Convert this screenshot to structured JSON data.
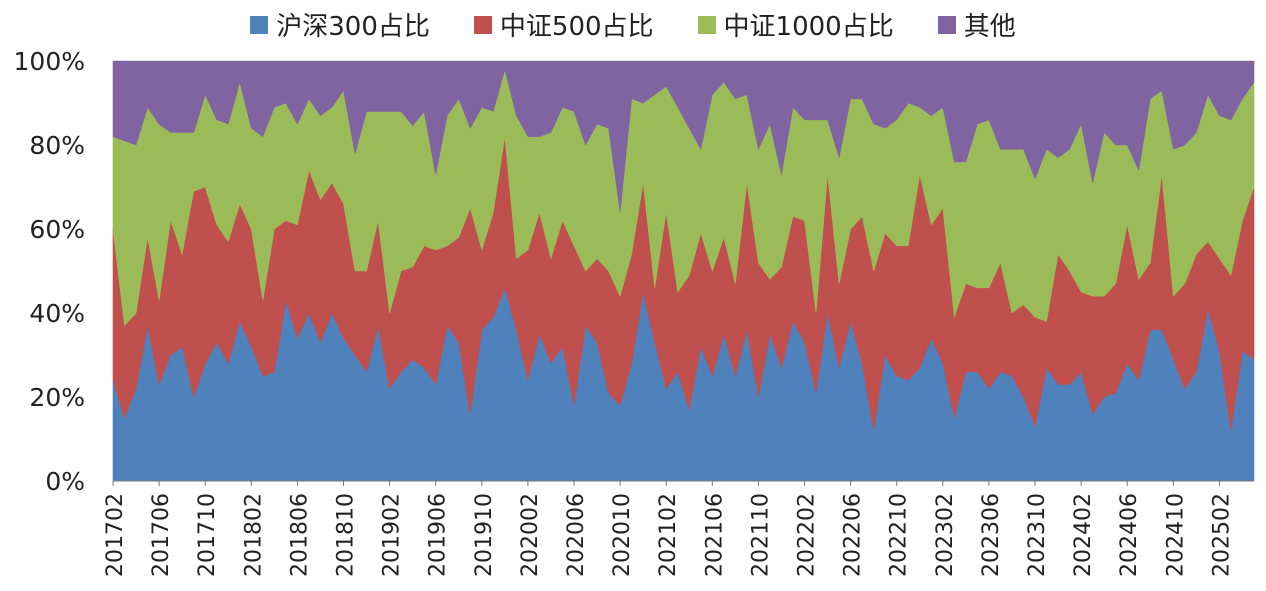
{
  "chart_data": {
    "type": "area",
    "stacked": true,
    "title": "",
    "xlabel": "",
    "ylabel": "",
    "ylim": [
      0,
      100
    ],
    "y_ticks": [
      "0%",
      "20%",
      "40%",
      "60%",
      "80%",
      "100%"
    ],
    "x_tick_labels": [
      "201702",
      "201706",
      "201710",
      "201802",
      "201806",
      "201810",
      "201902",
      "201906",
      "201910",
      "202002",
      "202006",
      "202010",
      "202102",
      "202106",
      "202110",
      "202202",
      "202206",
      "202210",
      "202302",
      "202306",
      "202310",
      "202402",
      "202406",
      "202410",
      "202502"
    ],
    "x_start": "201702",
    "x_end": "202505",
    "series": [
      {
        "name": "沪深300占比",
        "color": "#4F81BD",
        "values": [
          24,
          15,
          22,
          37,
          23,
          30,
          32,
          20,
          28,
          33,
          28,
          38,
          32,
          25,
          26,
          43,
          34,
          40,
          33,
          40,
          34,
          30,
          26,
          37,
          22,
          26,
          30,
          27,
          23,
          37,
          33,
          16,
          36,
          39,
          46,
          36,
          24,
          35,
          28,
          32,
          18,
          37,
          33,
          21,
          18,
          28,
          45,
          33,
          22,
          26,
          17,
          32,
          25,
          35,
          25,
          36,
          20,
          35,
          27,
          38,
          33,
          21,
          40,
          27,
          38,
          28,
          12,
          30,
          25,
          24,
          27,
          34,
          28,
          15,
          26,
          26,
          22,
          26,
          25,
          20,
          13,
          27,
          23,
          23,
          26,
          16,
          20,
          21,
          28,
          24,
          36,
          36,
          29,
          22,
          26,
          41,
          31,
          12,
          31,
          29
        ]
      },
      {
        "name": "中证500占比",
        "color": "#C0504D",
        "values": [
          36,
          22,
          18,
          21,
          20,
          32,
          22,
          49,
          42,
          28,
          29,
          28,
          28,
          18,
          34,
          19,
          27,
          34,
          34,
          31,
          32,
          20,
          24,
          25,
          18,
          24,
          23,
          29,
          32,
          19,
          25,
          49,
          19,
          25,
          36,
          17,
          31,
          29,
          25,
          30,
          38,
          13,
          20,
          29,
          26,
          26,
          26,
          13,
          42,
          19,
          32,
          27,
          25,
          23,
          22,
          35,
          32,
          13,
          24,
          25,
          29,
          19,
          33,
          20,
          22,
          35,
          38,
          29,
          31,
          32,
          46,
          27,
          37,
          24,
          21,
          20,
          24,
          26,
          15,
          22,
          26,
          11,
          31,
          27,
          19,
          28,
          24,
          26,
          33,
          24,
          16,
          37,
          15,
          25,
          28,
          16,
          22,
          37,
          31,
          41
        ]
      },
      {
        "name": "中证1000占比",
        "color": "#9BBB59",
        "values": [
          22,
          44,
          40,
          31,
          42,
          21,
          29,
          14,
          22,
          25,
          28,
          29,
          24,
          39,
          29,
          28,
          24,
          17,
          20,
          18,
          27,
          28,
          38,
          26,
          48,
          38,
          35,
          32,
          18,
          31,
          33,
          19,
          34,
          24,
          16,
          34,
          27,
          18,
          30,
          27,
          32,
          30,
          32,
          34,
          20,
          37,
          19,
          46,
          30,
          44,
          35,
          20,
          42,
          37,
          44,
          21,
          27,
          37,
          22,
          26,
          24,
          46,
          13,
          30,
          31,
          28,
          35,
          25,
          30,
          34,
          16,
          26,
          24,
          37,
          29,
          39,
          40,
          27,
          39,
          37,
          33,
          41,
          23,
          29,
          40,
          27,
          39,
          33,
          19,
          26,
          39,
          20,
          35,
          33,
          29,
          35,
          34,
          37,
          29,
          25
        ]
      },
      {
        "name": "其他",
        "color": "#8064A2",
        "values": [
          18,
          19,
          20,
          11,
          15,
          17,
          17,
          17,
          8,
          14,
          15,
          5,
          16,
          18,
          11,
          10,
          15,
          9,
          13,
          11,
          7,
          22,
          12,
          12,
          12,
          12,
          16,
          12,
          27,
          13,
          9,
          16,
          11,
          12,
          2,
          13,
          18,
          18,
          17,
          11,
          12,
          20,
          15,
          16,
          36,
          9,
          10,
          8,
          6,
          11,
          16,
          21,
          8,
          5,
          9,
          8,
          21,
          15,
          27,
          11,
          14,
          14,
          14,
          23,
          9,
          9,
          15,
          16,
          14,
          10,
          11,
          13,
          11,
          24,
          24,
          15,
          14,
          21,
          21,
          21,
          28,
          21,
          23,
          21,
          15,
          29,
          17,
          20,
          20,
          26,
          9,
          7,
          21,
          20,
          17,
          8,
          13,
          14,
          9,
          5
        ]
      }
    ]
  }
}
